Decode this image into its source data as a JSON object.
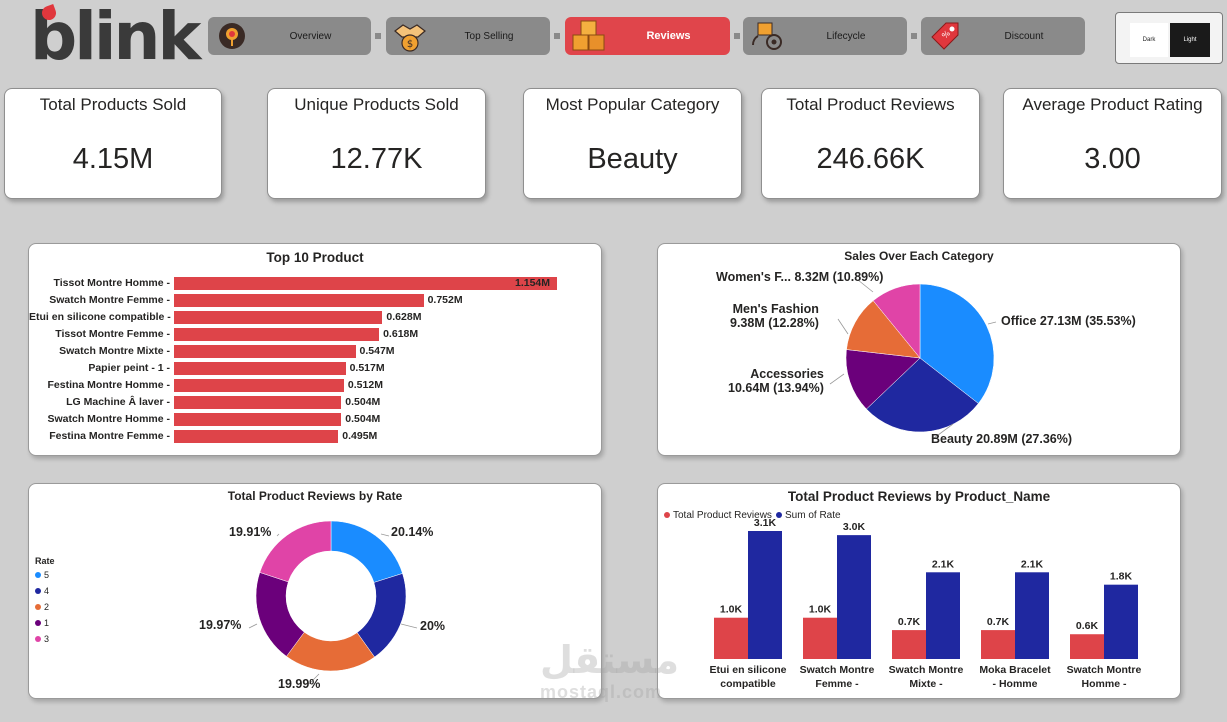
{
  "brand": {
    "logo_text": "blink"
  },
  "nav": [
    {
      "label": "Overview",
      "icon": "target-icon",
      "active": false
    },
    {
      "label": "Top Selling",
      "icon": "handshake-money-icon",
      "active": false
    },
    {
      "label": "Reviews",
      "icon": "boxes-icon",
      "active": true
    },
    {
      "label": "Lifecycle",
      "icon": "box-cycle-icon",
      "active": false
    },
    {
      "label": "Discount",
      "icon": "discount-tag-icon",
      "active": false
    }
  ],
  "theme": {
    "dark_label": "Dark",
    "light_label": "Light"
  },
  "kpis": [
    {
      "title": "Total Products Sold",
      "value": "4.15M"
    },
    {
      "title": "Unique Products Sold",
      "value": "12.77K"
    },
    {
      "title": "Most Popular Category",
      "value": "Beauty"
    },
    {
      "title": "Total Product Reviews",
      "value": "246.66K"
    },
    {
      "title": "Average Product Rating",
      "value": "3.00"
    }
  ],
  "colors": {
    "accent": "#de4449",
    "nav_gray": "#8a8a8a",
    "navy": "#1f28a0"
  },
  "chart_data": [
    {
      "type": "bar",
      "orientation": "horizontal",
      "title": "Top 10 Product",
      "categories": [
        "Tissot Montre Homme",
        "Swatch Montre Femme",
        "Etui en silicone compatible",
        "Tissot Montre Femme",
        "Swatch Montre Mixte",
        "Papier peint - 1",
        "Festina Montre Homme",
        "LG Machine Â  laver",
        "Swatch Montre Homme",
        "Festina Montre Femme"
      ],
      "values": [
        1.154,
        0.752,
        0.628,
        0.618,
        0.547,
        0.517,
        0.512,
        0.504,
        0.504,
        0.495
      ],
      "value_labels": [
        "1.154M",
        "0.752M",
        "0.628M",
        "0.618M",
        "0.547M",
        "0.517M",
        "0.512M",
        "0.504M",
        "0.504M",
        "0.495M"
      ],
      "color": "#de4449"
    },
    {
      "type": "pie",
      "title": "Sales Over Each Category",
      "slices": [
        {
          "name": "Office",
          "value": 27.13,
          "label": "Office 27.13M (35.53%)",
          "color": "#1a8cff"
        },
        {
          "name": "Beauty",
          "value": 20.89,
          "label": "Beauty 20.89M (27.36%)",
          "color": "#1f28a0"
        },
        {
          "name": "Accessories",
          "value": 10.64,
          "label": "Accessories\n10.64M (13.94%)",
          "color": "#6b007b"
        },
        {
          "name": "Men's Fashion",
          "value": 9.38,
          "label": "Men's Fashion\n9.38M (12.28%)",
          "color": "#e66c37"
        },
        {
          "name": "Women's F...",
          "value": 8.32,
          "label": "Women's F... 8.32M (10.89%)",
          "color": "#e044a7"
        }
      ]
    },
    {
      "type": "pie",
      "variant": "donut",
      "title": "Total Product Reviews by Rate",
      "legend_title": "Rate",
      "legend_position": "left",
      "slices": [
        {
          "name": "5",
          "value": 20.14,
          "label": "20.14%",
          "color": "#1a8cff"
        },
        {
          "name": "4",
          "value": 20.0,
          "label": "20%",
          "color": "#1f28a0"
        },
        {
          "name": "2",
          "value": 19.99,
          "label": "19.99%",
          "color": "#e66c37"
        },
        {
          "name": "1",
          "value": 19.97,
          "label": "19.97%",
          "color": "#6b007b"
        },
        {
          "name": "3",
          "value": 19.91,
          "label": "19.91%",
          "color": "#e044a7"
        }
      ]
    },
    {
      "type": "bar",
      "title": "Total Product Reviews by Product_Name",
      "legend_position": "top-left",
      "categories": [
        "Etui en silicone compatible",
        "Swatch Montre Femme -",
        "Swatch Montre Mixte -",
        "Moka Bracelet - Homme",
        "Swatch Montre Homme -"
      ],
      "series": [
        {
          "name": "Total Product Reviews",
          "values": [
            1.0,
            1.0,
            0.7,
            0.7,
            0.6
          ],
          "labels": [
            "1.0K",
            "1.0K",
            "0.7K",
            "0.7K",
            "0.6K"
          ],
          "color": "#de4449"
        },
        {
          "name": "Sum of Rate",
          "values": [
            3.1,
            3.0,
            2.1,
            2.1,
            1.8
          ],
          "labels": [
            "3.1K",
            "3.0K",
            "2.1K",
            "2.1K",
            "1.8K"
          ],
          "color": "#1f28a0"
        }
      ]
    }
  ],
  "watermark": {
    "text": "مستقل",
    "sub": "mostaql.com"
  }
}
